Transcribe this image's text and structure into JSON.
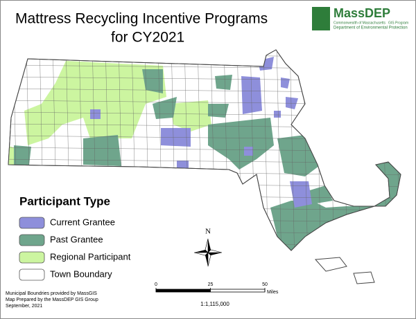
{
  "header": {
    "title_lines": [
      "Mattress Recycling Incentive Programs",
      "for CY2021"
    ]
  },
  "logo": {
    "name": "MassDEP",
    "lines": [
      "Commonwealth of Massachusetts",
      "GIS Program",
      "Department of Environmental Protection"
    ]
  },
  "legend": {
    "title": "Participant Type",
    "items": [
      {
        "label": "Current Grantee",
        "color": "#8e8fdb"
      },
      {
        "label": "Past Grantee",
        "color": "#6fa58c"
      },
      {
        "label": "Regional Participant",
        "color": "#ccf5a0"
      },
      {
        "label": "Town Boundary",
        "color": "#ffffff"
      }
    ]
  },
  "compass": {
    "label": "N"
  },
  "scale_bar": {
    "ticks": [
      0,
      25,
      50
    ],
    "unit": "Miles",
    "ratio": "1:1,115,000"
  },
  "credits": [
    "Municipal Boundries provided by MassGIS",
    "Map Prepared by the MassDEP GIS Group",
    "September, 2021"
  ]
}
